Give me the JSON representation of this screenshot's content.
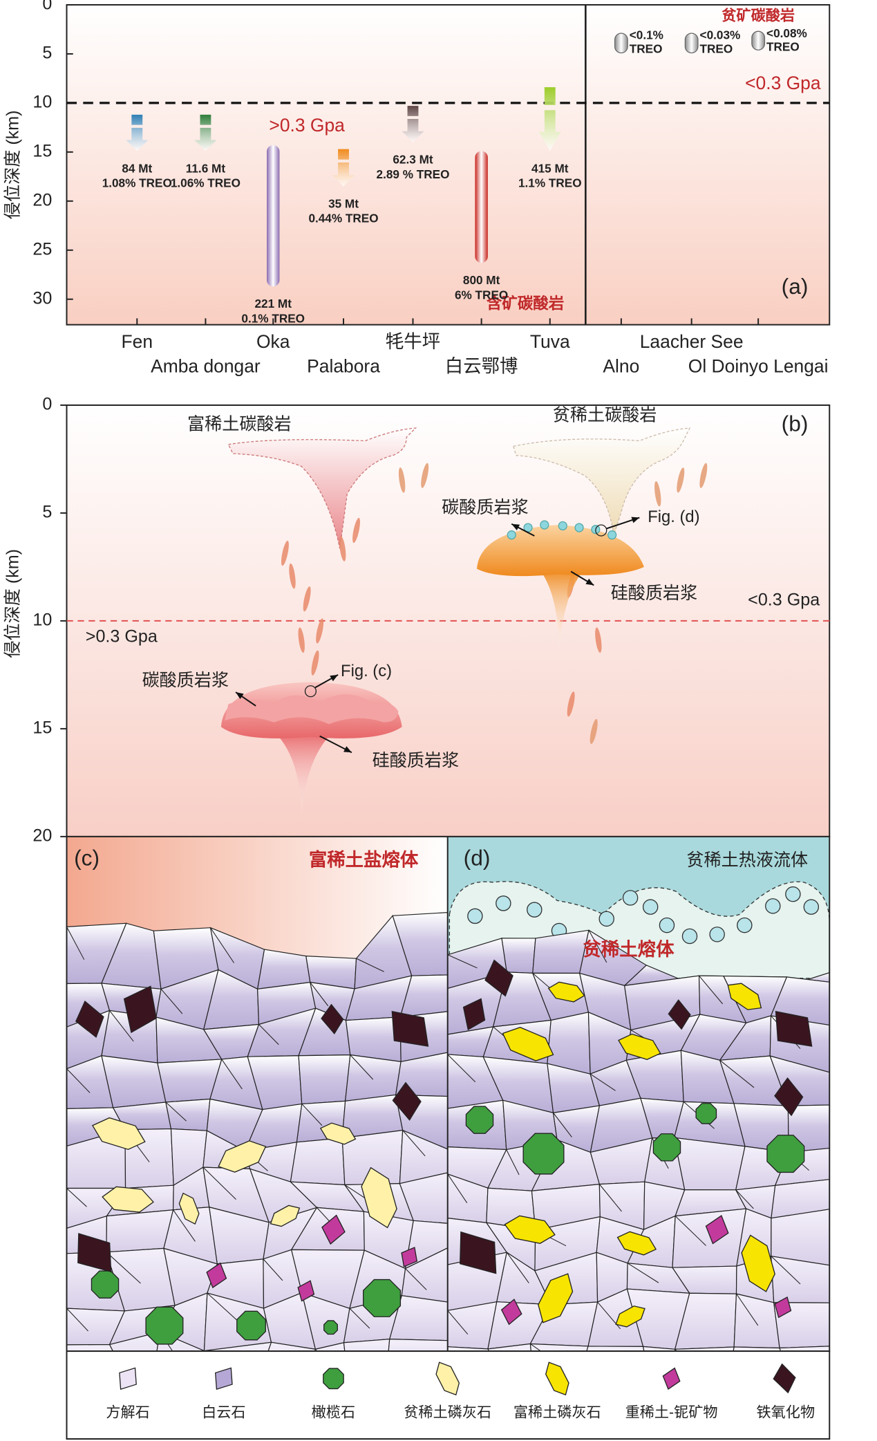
{
  "panel_a": {
    "label": "(a)",
    "y_label": "侵位深度 (km)",
    "ylim": [
      0,
      32.6
    ],
    "yticks": [
      0,
      5,
      10,
      15,
      20,
      25,
      30
    ],
    "pressure_depth": 10,
    "low_pressure": "<0.3 Gpa",
    "high_pressure": ">0.3 Gpa",
    "ore_bearing": "含矿碳酸岩",
    "ore_poor": "贫矿碳酸岩",
    "deposits": [
      {
        "name": "Fen",
        "tonnage": "84 Mt",
        "grade": "1.08% TREO",
        "top": 11.2,
        "bottom": 14.9,
        "shape": "arrow",
        "color": "#2f7fb5"
      },
      {
        "name": "Amba dongar",
        "tonnage": "11.6 Mt",
        "grade": "1.06% TREO",
        "top": 11.2,
        "bottom": 14.9,
        "shape": "arrow",
        "color": "#2e7d3a"
      },
      {
        "name": "Oka",
        "tonnage": "221 Mt",
        "grade": "0.1% TREO",
        "top": 14.3,
        "bottom": 28.7,
        "shape": "bar",
        "color": "#8a6bb0"
      },
      {
        "name": "Palabora",
        "tonnage": "35 Mt",
        "grade": "0.44% TREO",
        "top": 14.7,
        "bottom": 18.5,
        "shape": "arrow",
        "color": "#f08a1c"
      },
      {
        "name": "牦牛坪",
        "tonnage": "62.3 Mt",
        "grade": "2.89 % TREO",
        "top": 10.3,
        "bottom": 14.0,
        "shape": "arrow",
        "color": "#5e4444"
      },
      {
        "name": "白云鄂博",
        "tonnage": "800 Mt",
        "grade": "6% TREO",
        "top": 14.9,
        "bottom": 26.3,
        "shape": "bar",
        "color": "#c8261e"
      },
      {
        "name": "Tuva",
        "tonnage": "415 Mt",
        "grade": "1.1% TREO",
        "top": 8.4,
        "bottom": 14.9,
        "shape": "arrow",
        "color": "#9ccc2a"
      },
      {
        "name": "Alno",
        "grade": "<0.1%",
        "unit": "TREO",
        "top": 2.9,
        "bottom": 4.9,
        "shape": "pill",
        "color": "#8c8c8c"
      },
      {
        "name": "Laacher See",
        "grade": "<0.03%",
        "unit": "TREO",
        "top": 2.9,
        "bottom": 4.9,
        "shape": "pill",
        "color": "#8c8c8c"
      },
      {
        "name": "Ol Doinyo Lengai",
        "grade": "<0.08%",
        "unit": "TREO",
        "top": 2.7,
        "bottom": 4.6,
        "shape": "pill",
        "color": "#8c8c8c"
      }
    ]
  },
  "panel_b": {
    "label": "(b)",
    "y_label": "侵位深度 (km)",
    "ylim": [
      0,
      20
    ],
    "yticks": [
      0,
      5,
      10,
      15,
      20
    ],
    "pressure_depth": 10,
    "low_pressure": "<0.3 Gpa",
    "high_pressure": ">0.3 Gpa",
    "rich_carbonatite": "富稀土碳酸岩",
    "poor_carbonatite": "贫稀土碳酸岩",
    "carbonate_magma_left": "碳酸质岩浆",
    "silicate_magma_left": "硅酸质岩浆",
    "carbonate_magma_right": "碳酸质岩浆",
    "silicate_magma_right": "硅酸质岩浆",
    "fig_c": "Fig. (c)",
    "fig_d": "Fig. (d)"
  },
  "panel_c": {
    "label": "(c)",
    "melt": "富稀土盐熔体"
  },
  "panel_d": {
    "label": "(d)",
    "fluid": "贫稀土热液流体",
    "melt": "贫稀土熔体"
  },
  "legend": [
    "方解石",
    "白云石",
    "橄榄石",
    "贫稀土磷灰石",
    "富稀土磷灰石",
    "重稀土-铌矿物",
    "铁氧化物"
  ]
}
